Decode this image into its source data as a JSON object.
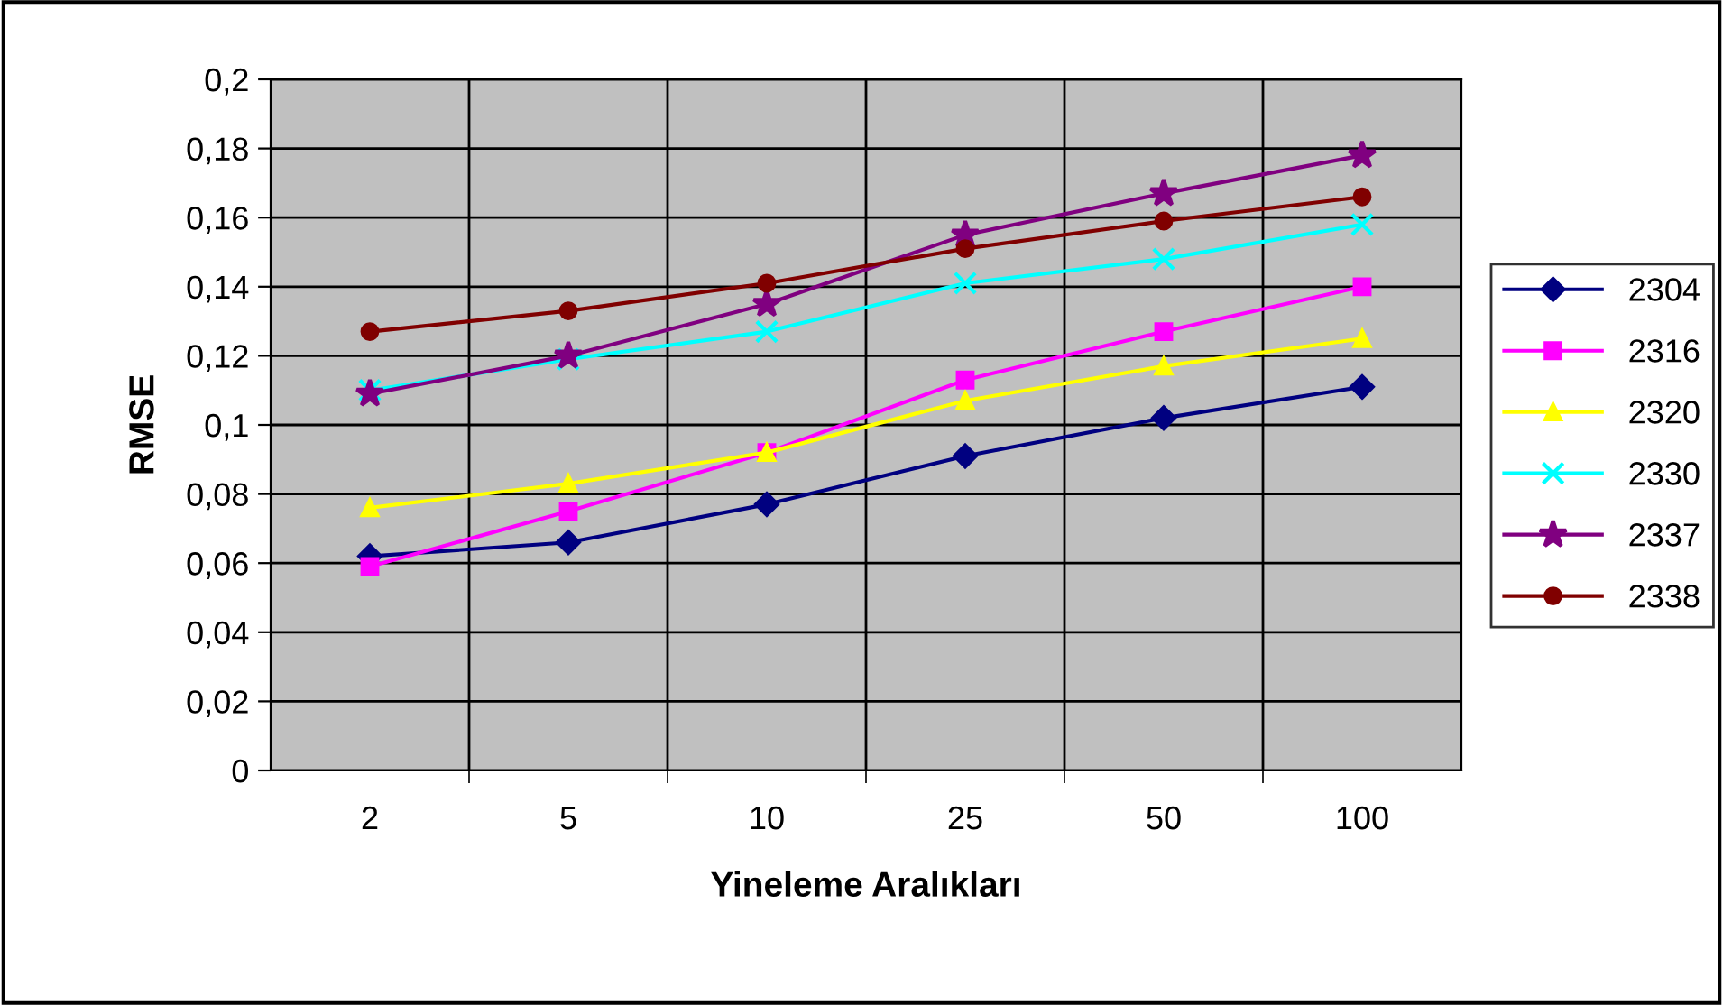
{
  "chart_data": {
    "type": "line",
    "xlabel": "Yineleme Aralıkları",
    "ylabel": "RMSE",
    "categories": [
      "2",
      "5",
      "10",
      "25",
      "50",
      "100"
    ],
    "ylim": [
      0,
      0.2
    ],
    "yticks": [
      {
        "value": 0,
        "label": "0"
      },
      {
        "value": 0.02,
        "label": "0,02"
      },
      {
        "value": 0.04,
        "label": "0,04"
      },
      {
        "value": 0.06,
        "label": "0,06"
      },
      {
        "value": 0.08,
        "label": "0,08"
      },
      {
        "value": 0.1,
        "label": "0,1"
      },
      {
        "value": 0.12,
        "label": "0,12"
      },
      {
        "value": 0.14,
        "label": "0,14"
      },
      {
        "value": 0.16,
        "label": "0,16"
      },
      {
        "value": 0.18,
        "label": "0,18"
      },
      {
        "value": 0.2,
        "label": "0,2"
      }
    ],
    "grid": true,
    "legend": "right",
    "series": [
      {
        "name": "2304",
        "color": "#000080",
        "marker": "diamond",
        "values": [
          0.062,
          0.066,
          0.077,
          0.091,
          0.102,
          0.111
        ]
      },
      {
        "name": "2316",
        "color": "#ff00ff",
        "marker": "square",
        "values": [
          0.059,
          0.075,
          0.092,
          0.113,
          0.127,
          0.14
        ]
      },
      {
        "name": "2320",
        "color": "#ffff00",
        "marker": "triangle",
        "values": [
          0.076,
          0.083,
          0.092,
          0.107,
          0.117,
          0.125
        ]
      },
      {
        "name": "2330",
        "color": "#00ffff",
        "marker": "cross",
        "values": [
          0.11,
          0.119,
          0.127,
          0.141,
          0.148,
          0.158
        ]
      },
      {
        "name": "2337",
        "color": "#800080",
        "marker": "star",
        "values": [
          0.109,
          0.12,
          0.135,
          0.155,
          0.167,
          0.178
        ]
      },
      {
        "name": "2338",
        "color": "#800000",
        "marker": "circle",
        "values": [
          0.127,
          0.133,
          0.141,
          0.151,
          0.159,
          0.166
        ]
      }
    ]
  }
}
